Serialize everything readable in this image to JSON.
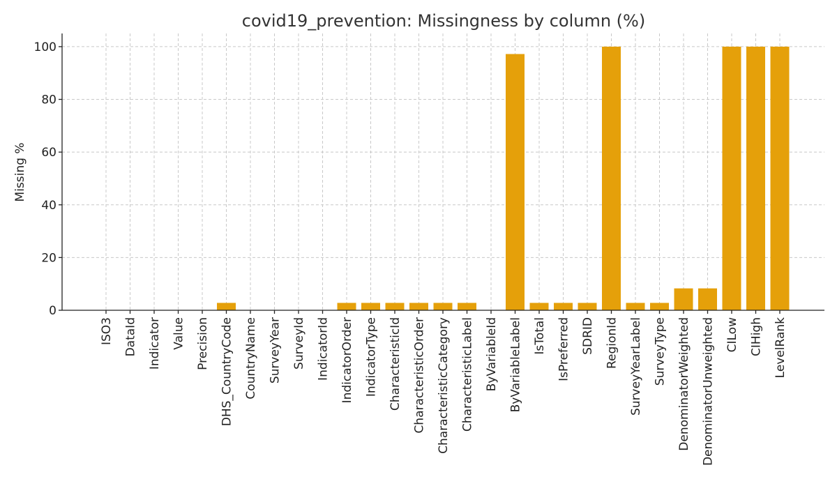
{
  "chart_data": {
    "type": "bar",
    "title": "covid19_prevention: Missingness by column (%)",
    "xlabel": "",
    "ylabel": "Missing %",
    "ylim": [
      0,
      105
    ],
    "yticks": [
      0,
      20,
      40,
      60,
      80,
      100
    ],
    "grid": true,
    "bar_color": "#E5A00A",
    "categories": [
      "ISO3",
      "DataId",
      "Indicator",
      "Value",
      "Precision",
      "DHS_CountryCode",
      "CountryName",
      "SurveyYear",
      "SurveyId",
      "IndicatorId",
      "IndicatorOrder",
      "IndicatorType",
      "CharacteristicId",
      "CharacteristicOrder",
      "CharacteristicCategory",
      "CharacteristicLabel",
      "ByVariableId",
      "ByVariableLabel",
      "IsTotal",
      "IsPreferred",
      "SDRID",
      "RegionId",
      "SurveyYearLabel",
      "SurveyType",
      "DenominatorWeighted",
      "DenominatorUnweighted",
      "CILow",
      "CIHigh",
      "LevelRank"
    ],
    "values": [
      0,
      0,
      0,
      0,
      0,
      2.8,
      0,
      0,
      0,
      0,
      2.8,
      2.8,
      2.8,
      2.8,
      2.8,
      2.8,
      0,
      97.2,
      2.8,
      2.8,
      2.8,
      100,
      2.8,
      2.8,
      8.3,
      8.3,
      100,
      100,
      100
    ]
  }
}
